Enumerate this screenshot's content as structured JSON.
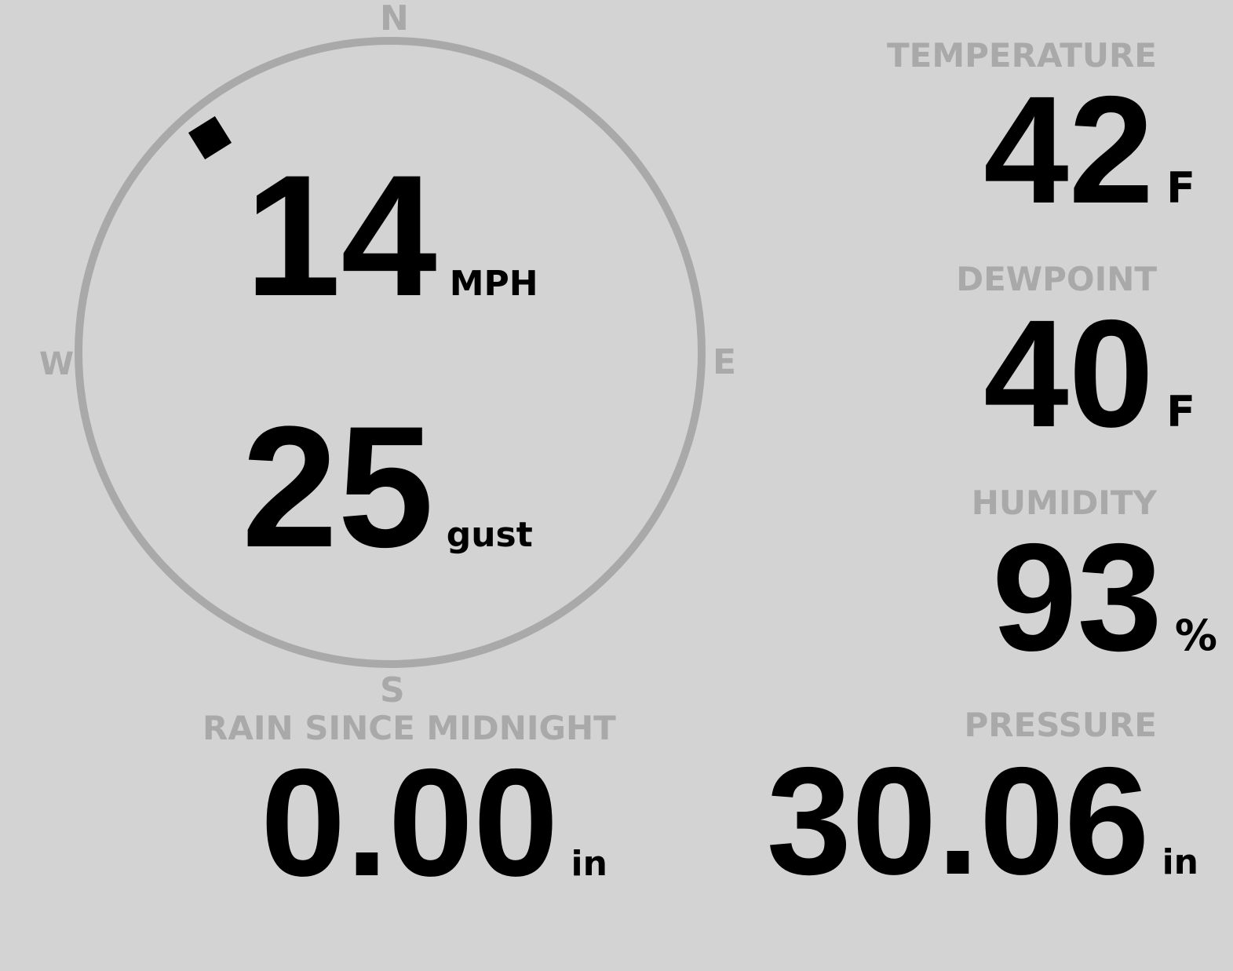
{
  "wind": {
    "compass": {
      "n": "N",
      "e": "E",
      "s": "S",
      "w": "W"
    },
    "direction_deg": 320,
    "speed": "14",
    "speed_unit": "MPH",
    "gust": "25",
    "gust_unit": "gust"
  },
  "temperature": {
    "label": "TEMPERATURE",
    "value": "42",
    "unit": "F"
  },
  "dewpoint": {
    "label": "DEWPOINT",
    "value": "40",
    "unit": "F"
  },
  "humidity": {
    "label": "HUMIDITY",
    "value": "93",
    "unit": "%"
  },
  "rain": {
    "label": "RAIN SINCE MIDNIGHT",
    "value": "0.00",
    "unit": "in"
  },
  "pressure": {
    "label": "PRESSURE",
    "value": "30.06",
    "unit": "in"
  },
  "colors": {
    "background": "#d3d3d3",
    "muted": "#a9a9a9",
    "text": "#000000"
  }
}
